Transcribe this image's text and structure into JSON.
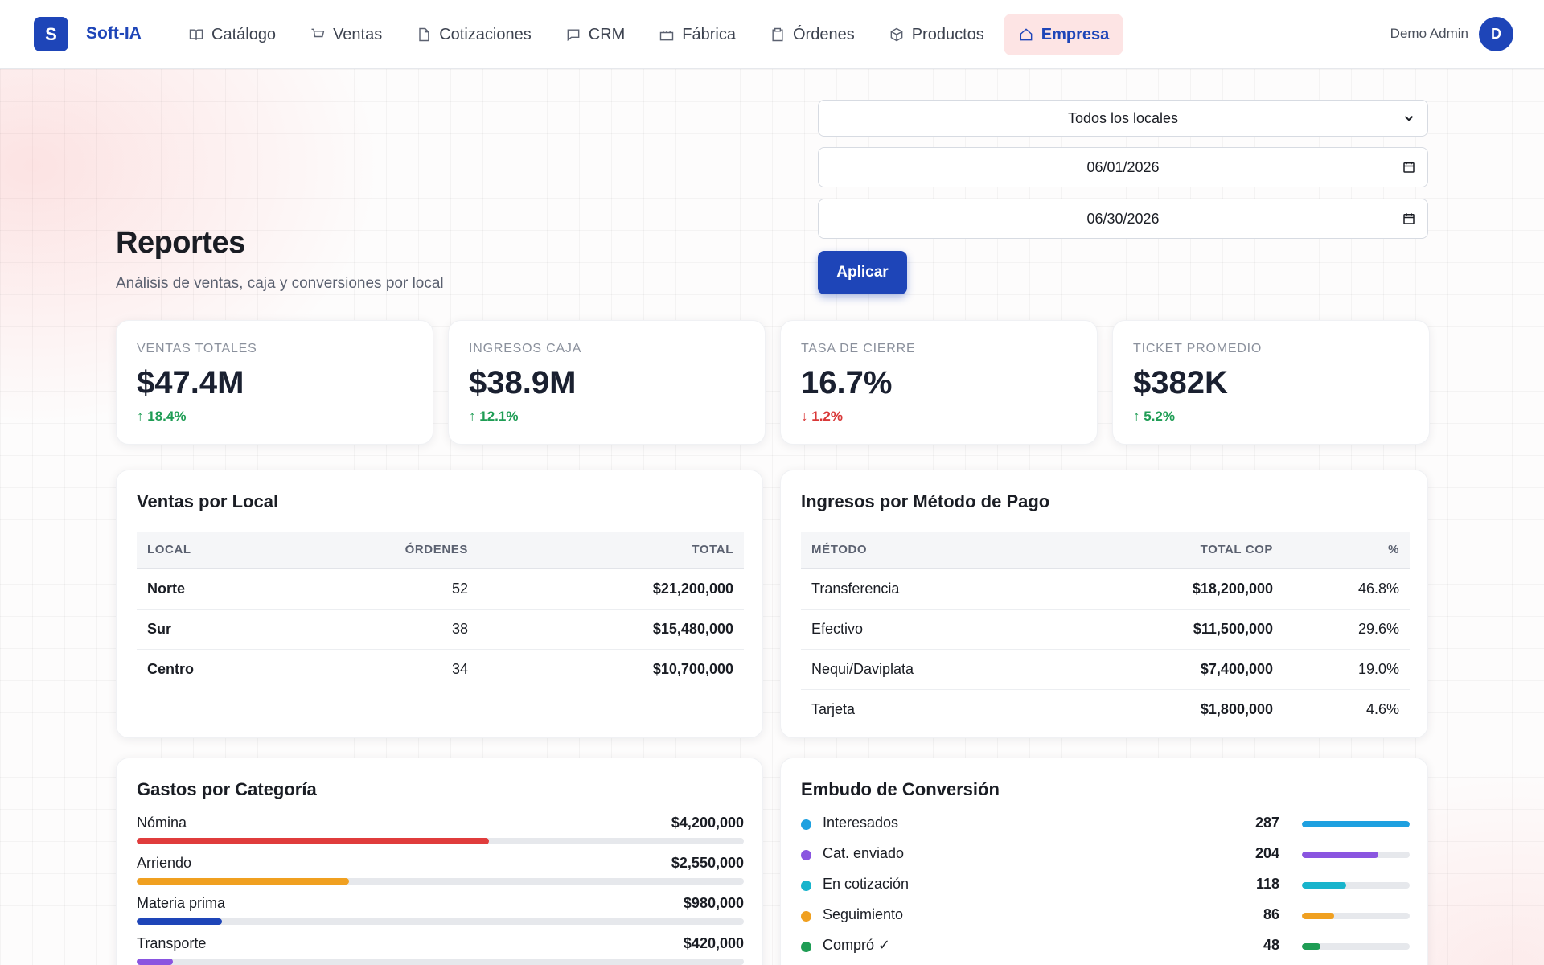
{
  "nav": {
    "logo_letter": "S",
    "brand": "Soft-IA",
    "items": [
      {
        "label": "Catálogo",
        "icon": "book-icon"
      },
      {
        "label": "Ventas",
        "icon": "cart-icon"
      },
      {
        "label": "Cotizaciones",
        "icon": "document-icon"
      },
      {
        "label": "CRM",
        "icon": "chat-icon"
      },
      {
        "label": "Fábrica",
        "icon": "factory-icon"
      },
      {
        "label": "Órdenes",
        "icon": "clipboard-icon"
      },
      {
        "label": "Productos",
        "icon": "box-icon"
      },
      {
        "label": "Empresa",
        "icon": "home-icon",
        "active": true
      }
    ],
    "user_name": "Demo Admin",
    "avatar_letter": "D"
  },
  "header": {
    "title": "Reportes",
    "subtitle": "Análisis de ventas, caja y conversiones por local"
  },
  "filters": {
    "location": "Todos los locales",
    "date_from": "06/01/2026",
    "date_to": "06/30/2026",
    "apply_label": "Aplicar"
  },
  "kpis": [
    {
      "label": "VENTAS TOTALES",
      "value": "$47.4M",
      "delta": "18.4%",
      "direction": "up"
    },
    {
      "label": "INGRESOS CAJA",
      "value": "$38.9M",
      "delta": "12.1%",
      "direction": "up"
    },
    {
      "label": "TASA DE CIERRE",
      "value": "16.7%",
      "delta": "1.2%",
      "direction": "down"
    },
    {
      "label": "TICKET PROMEDIO",
      "value": "$382K",
      "delta": "5.2%",
      "direction": "up"
    }
  ],
  "sales_by_location": {
    "title": "Ventas por Local",
    "columns": [
      "LOCAL",
      "ÓRDENES",
      "TOTAL"
    ],
    "rows": [
      [
        "Norte",
        "52",
        "$21,200,000"
      ],
      [
        "Sur",
        "38",
        "$15,480,000"
      ],
      [
        "Centro",
        "34",
        "$10,700,000"
      ]
    ]
  },
  "income_by_method": {
    "title": "Ingresos por Método de Pago",
    "columns": [
      "MÉTODO",
      "TOTAL COP",
      "%"
    ],
    "rows": [
      [
        "Transferencia",
        "$18,200,000",
        "46.8%"
      ],
      [
        "Efectivo",
        "$11,500,000",
        "29.6%"
      ],
      [
        "Nequi/Daviplata",
        "$7,400,000",
        "19.0%"
      ],
      [
        "Tarjeta",
        "$1,800,000",
        "4.6%"
      ]
    ]
  },
  "expenses": {
    "title": "Gastos por Categoría",
    "items": [
      {
        "name": "Nómina",
        "amount": "$4,200,000",
        "fraction": 0.58,
        "color": "#e03c3c"
      },
      {
        "name": "Arriendo",
        "amount": "$2,550,000",
        "fraction": 0.35,
        "color": "#f0a020"
      },
      {
        "name": "Materia prima",
        "amount": "$980,000",
        "fraction": 0.14,
        "color": "#1e45b8"
      },
      {
        "name": "Transporte",
        "amount": "$420,000",
        "fraction": 0.06,
        "color": "#8a55e0"
      }
    ]
  },
  "funnel": {
    "title": "Embudo de Conversión",
    "items": [
      {
        "name": "Interesados",
        "count": "287",
        "fraction": 1.0,
        "color": "#1ea0e0"
      },
      {
        "name": "Cat. enviado",
        "count": "204",
        "fraction": 0.71,
        "color": "#8a55e0"
      },
      {
        "name": "En cotización",
        "count": "118",
        "fraction": 0.41,
        "color": "#18b4cc"
      },
      {
        "name": "Seguimiento",
        "count": "86",
        "fraction": 0.3,
        "color": "#f0a020"
      },
      {
        "name": "Compró ✓",
        "count": "48",
        "fraction": 0.17,
        "color": "#1f9d55"
      }
    ]
  }
}
